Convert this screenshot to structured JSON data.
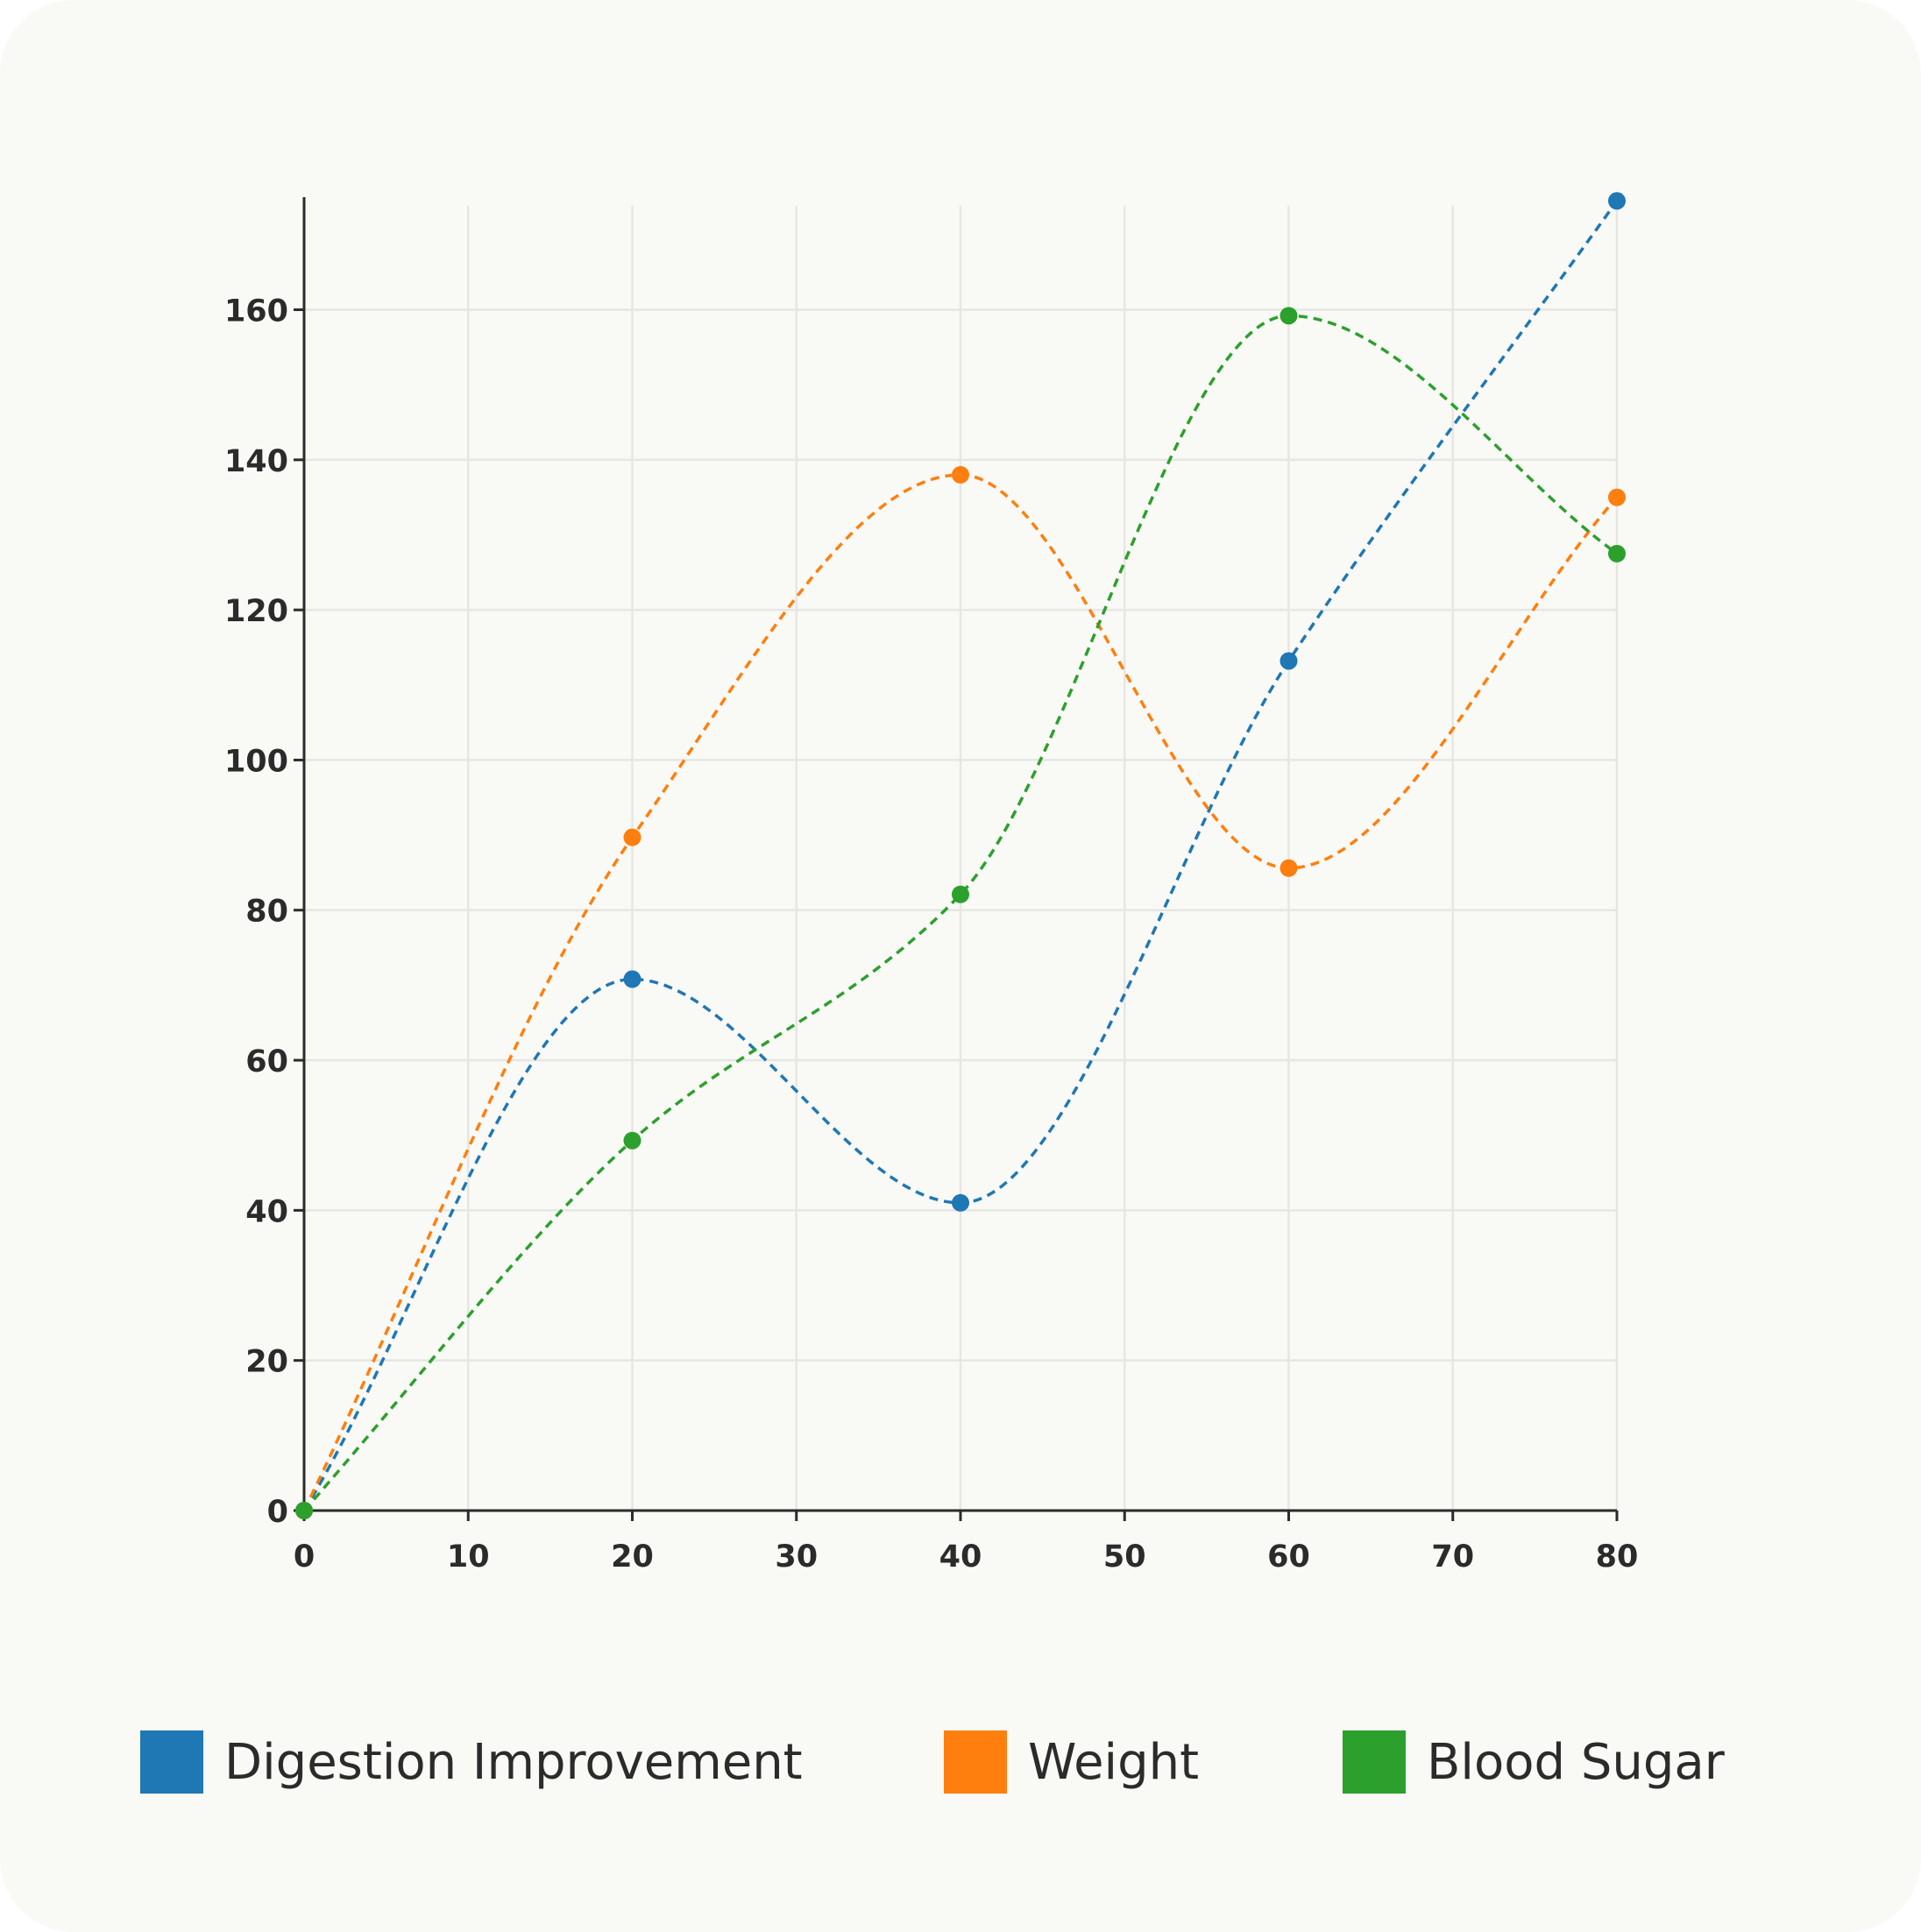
{
  "chart_data": {
    "type": "line",
    "title": "",
    "xlabel": "",
    "ylabel": "",
    "x": [
      0,
      20,
      40,
      60,
      80
    ],
    "xlim": [
      0,
      80
    ],
    "ylim": [
      0,
      175
    ],
    "x_ticks": [
      0,
      10,
      20,
      30,
      40,
      50,
      60,
      70,
      80
    ],
    "y_ticks": [
      0,
      20,
      40,
      60,
      80,
      100,
      120,
      140,
      160
    ],
    "grid": true,
    "line_style": "dashed",
    "smooth": true,
    "markers": true,
    "legend_position": "bottom",
    "series": [
      {
        "name": "Digestion Improvement",
        "color": "#1f77b4",
        "values": [
          0,
          70.8,
          41,
          113.2,
          174.5
        ]
      },
      {
        "name": "Weight",
        "color": "#ff7f0e",
        "values": [
          0,
          89.7,
          138,
          85.6,
          135
        ]
      },
      {
        "name": "Blood Sugar",
        "color": "#2ca02c",
        "values": [
          0,
          49.3,
          82.1,
          159.2,
          127.5
        ]
      }
    ]
  }
}
